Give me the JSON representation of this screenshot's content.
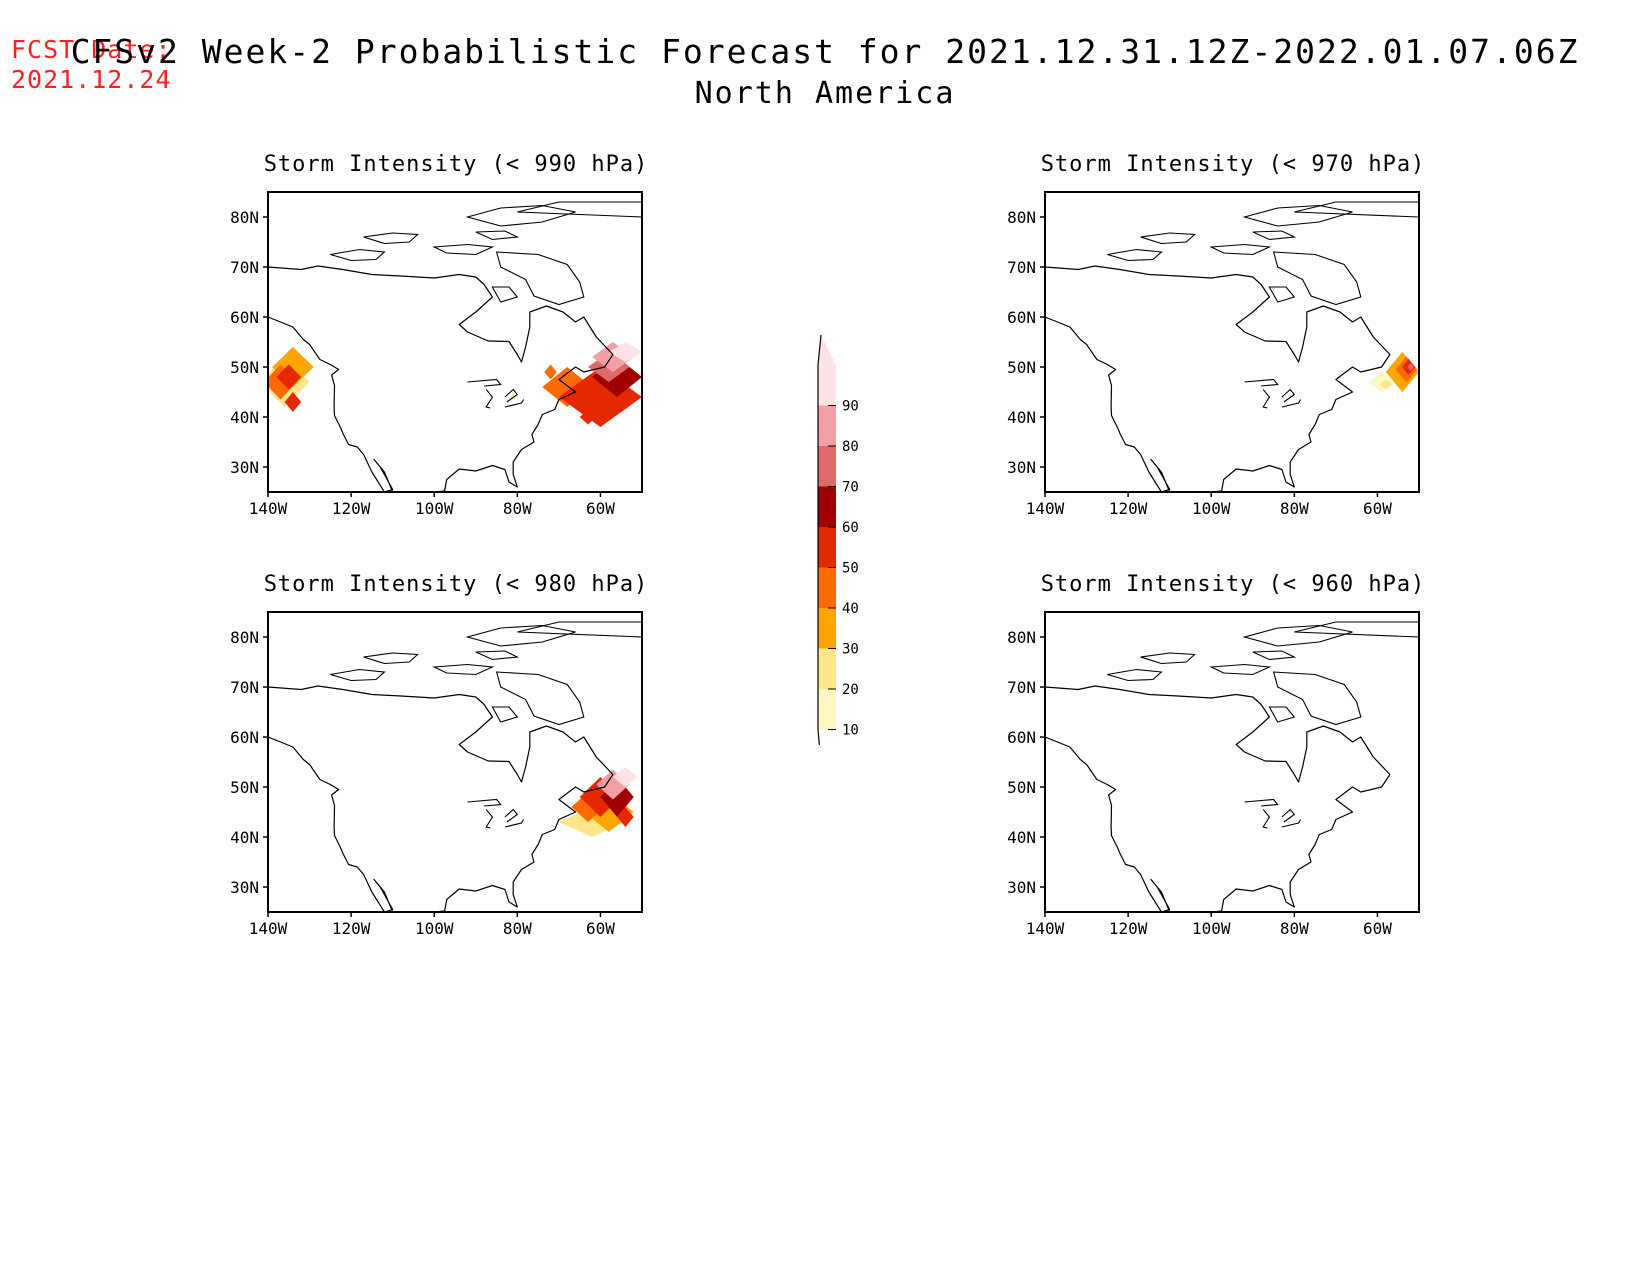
{
  "header": {
    "fcst_label": "FCST Date:",
    "fcst_date": "2021.12.24",
    "title": "CFSv2 Week-2 Probabilistic Forecast for 2021.12.31.12Z-2022.01.07.06Z",
    "subtitle": "North America"
  },
  "axes": {
    "lon_ticks": [
      "140W",
      "120W",
      "100W",
      "80W",
      "60W"
    ],
    "lat_ticks": [
      "80N",
      "70N",
      "60N",
      "50N",
      "40N",
      "30N"
    ],
    "lon_range": [
      -140,
      -50
    ],
    "lat_range": [
      25,
      85
    ]
  },
  "panels": [
    {
      "id": "p990",
      "title": "Storm Intensity (< 990 hPa)"
    },
    {
      "id": "p970",
      "title": "Storm Intensity (< 970 hPa)"
    },
    {
      "id": "p980",
      "title": "Storm Intensity (< 980 hPa)"
    },
    {
      "id": "p960",
      "title": "Storm Intensity (< 960 hPa)"
    }
  ],
  "colorbar": {
    "levels": [
      "10",
      "20",
      "30",
      "40",
      "50",
      "60",
      "70",
      "80",
      "90"
    ],
    "colors": [
      "#fff8c0",
      "#fde68a",
      "#ffa500",
      "#ff6a00",
      "#e42800",
      "#a00000",
      "#df6a6a",
      "#f2a0a6",
      "#fde3e6"
    ]
  }
}
